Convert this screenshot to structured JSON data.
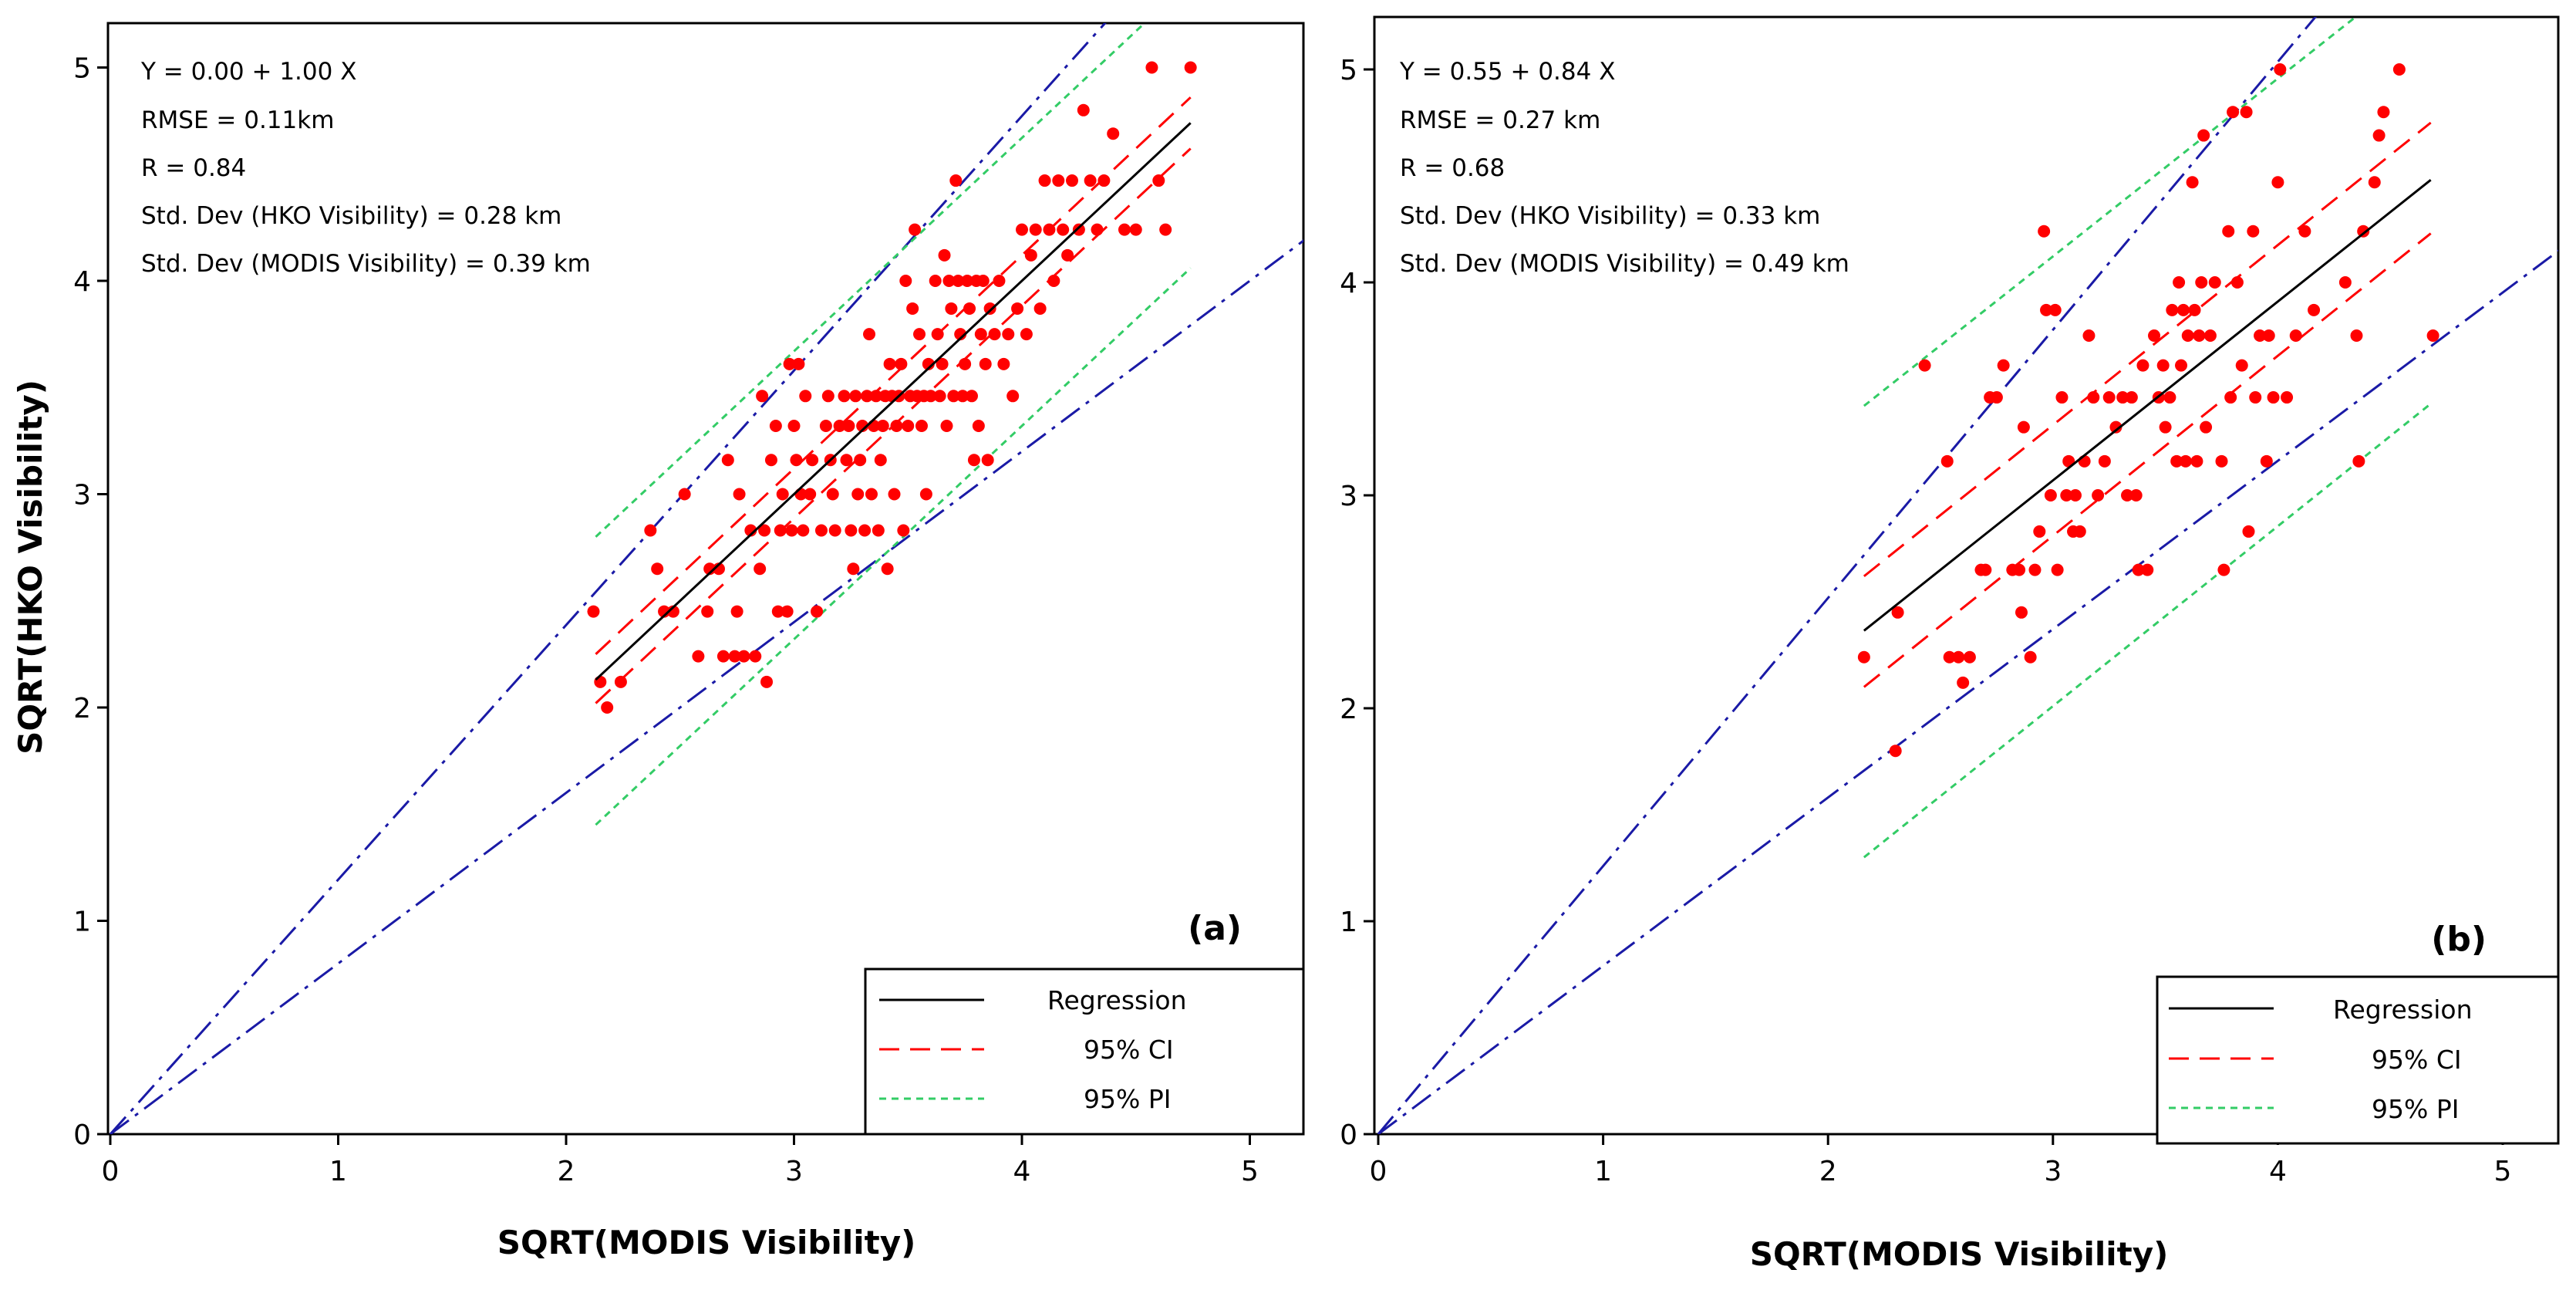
{
  "colors": {
    "points": "#ff0000",
    "regression": "#000000",
    "ci": "#ff0000",
    "pi": "#33cc66",
    "bounds": "#1a1aa6"
  },
  "chart_data": [
    {
      "type": "scatter",
      "panel_label": "(a)",
      "xlabel": "SQRT(MODIS Visibility)",
      "ylabel": "SQRT(HKO Visibility)",
      "xlim": [
        0,
        5.25
      ],
      "ylim": [
        0,
        5.25
      ],
      "xticks": [
        "0",
        "1",
        "2",
        "3",
        "4",
        "5"
      ],
      "yticks": [
        "0",
        "1",
        "2",
        "3",
        "4",
        "5"
      ],
      "annotations": [
        "Y = 0.00 + 1.00 X",
        "RMSE = 0.11km",
        "R = 0.84",
        "Std. Dev (HKO Visibility)  = 0.28 km",
        "Std. Dev (MODIS Visibility) = 0.39 km"
      ],
      "legend": {
        "location": "bottom-right",
        "entries": [
          "Regression",
          "95% CI",
          "95% PI"
        ]
      },
      "regression": {
        "intercept": 0.0,
        "slope": 1.0,
        "x_range": [
          2.13,
          4.74
        ]
      },
      "ci_upper": [
        [
          2.13,
          2.25
        ],
        [
          4.74,
          4.86
        ]
      ],
      "ci_lower": [
        [
          2.13,
          2.02
        ],
        [
          4.74,
          4.62
        ]
      ],
      "pi_upper": [
        [
          2.13,
          2.8
        ],
        [
          4.6,
          5.27
        ]
      ],
      "pi_lower": [
        [
          2.13,
          1.45
        ],
        [
          4.74,
          4.06
        ]
      ],
      "bound_upper": [
        [
          0,
          0
        ],
        [
          4.4,
          5.25
        ]
      ],
      "bound_lower": [
        [
          0,
          0
        ],
        [
          5.25,
          4.2
        ]
      ],
      "points": [
        [
          2.12,
          2.45
        ],
        [
          2.15,
          2.12
        ],
        [
          2.18,
          2.0
        ],
        [
          2.24,
          2.12
        ],
        [
          2.37,
          2.83
        ],
        [
          2.4,
          2.65
        ],
        [
          2.43,
          2.45
        ],
        [
          2.47,
          2.45
        ],
        [
          2.52,
          3.0
        ],
        [
          2.58,
          2.24
        ],
        [
          2.62,
          2.45
        ],
        [
          2.63,
          2.65
        ],
        [
          2.67,
          2.65
        ],
        [
          2.69,
          2.24
        ],
        [
          2.71,
          3.16
        ],
        [
          2.74,
          2.24
        ],
        [
          2.75,
          2.45
        ],
        [
          2.76,
          3.0
        ],
        [
          2.78,
          2.24
        ],
        [
          2.81,
          2.83
        ],
        [
          2.83,
          2.24
        ],
        [
          2.85,
          2.65
        ],
        [
          2.86,
          3.46
        ],
        [
          2.87,
          2.83
        ],
        [
          2.88,
          2.12
        ],
        [
          2.9,
          3.16
        ],
        [
          2.92,
          3.32
        ],
        [
          2.93,
          2.45
        ],
        [
          2.94,
          2.83
        ],
        [
          2.95,
          3.0
        ],
        [
          2.97,
          2.45
        ],
        [
          2.98,
          3.61
        ],
        [
          2.99,
          2.83
        ],
        [
          3.0,
          3.32
        ],
        [
          3.01,
          3.16
        ],
        [
          3.02,
          3.61
        ],
        [
          3.03,
          3.0
        ],
        [
          3.04,
          2.83
        ],
        [
          3.05,
          3.46
        ],
        [
          3.07,
          3.0
        ],
        [
          3.08,
          3.16
        ],
        [
          3.1,
          2.45
        ],
        [
          3.12,
          2.83
        ],
        [
          3.14,
          3.32
        ],
        [
          3.15,
          3.46
        ],
        [
          3.16,
          3.16
        ],
        [
          3.17,
          3.0
        ],
        [
          3.18,
          2.83
        ],
        [
          3.2,
          3.32
        ],
        [
          3.22,
          3.46
        ],
        [
          3.23,
          3.16
        ],
        [
          3.24,
          3.32
        ],
        [
          3.25,
          2.83
        ],
        [
          3.26,
          2.65
        ],
        [
          3.27,
          3.46
        ],
        [
          3.28,
          3.0
        ],
        [
          3.29,
          3.16
        ],
        [
          3.3,
          3.32
        ],
        [
          3.31,
          2.83
        ],
        [
          3.32,
          3.46
        ],
        [
          3.33,
          3.75
        ],
        [
          3.34,
          3.0
        ],
        [
          3.35,
          3.32
        ],
        [
          3.36,
          3.46
        ],
        [
          3.37,
          2.83
        ],
        [
          3.38,
          3.16
        ],
        [
          3.39,
          3.32
        ],
        [
          3.4,
          3.46
        ],
        [
          3.41,
          2.65
        ],
        [
          3.42,
          3.61
        ],
        [
          3.43,
          3.46
        ],
        [
          3.44,
          3.0
        ],
        [
          3.45,
          3.32
        ],
        [
          3.46,
          3.46
        ],
        [
          3.47,
          3.61
        ],
        [
          3.48,
          2.83
        ],
        [
          3.49,
          4.0
        ],
        [
          3.5,
          3.32
        ],
        [
          3.51,
          3.46
        ],
        [
          3.52,
          3.87
        ],
        [
          3.53,
          4.24
        ],
        [
          3.54,
          3.46
        ],
        [
          3.55,
          3.75
        ],
        [
          3.56,
          3.32
        ],
        [
          3.57,
          3.46
        ],
        [
          3.58,
          3.0
        ],
        [
          3.59,
          3.61
        ],
        [
          3.6,
          3.46
        ],
        [
          3.62,
          4.0
        ],
        [
          3.63,
          3.75
        ],
        [
          3.64,
          3.46
        ],
        [
          3.65,
          3.61
        ],
        [
          3.66,
          4.12
        ],
        [
          3.67,
          3.32
        ],
        [
          3.68,
          4.0
        ],
        [
          3.69,
          3.87
        ],
        [
          3.7,
          3.46
        ],
        [
          3.71,
          4.47
        ],
        [
          3.72,
          4.0
        ],
        [
          3.73,
          3.75
        ],
        [
          3.74,
          3.46
        ],
        [
          3.75,
          3.61
        ],
        [
          3.76,
          4.0
        ],
        [
          3.77,
          3.87
        ],
        [
          3.78,
          3.46
        ],
        [
          3.79,
          3.16
        ],
        [
          3.8,
          4.0
        ],
        [
          3.81,
          3.32
        ],
        [
          3.82,
          3.75
        ],
        [
          3.83,
          4.0
        ],
        [
          3.84,
          3.61
        ],
        [
          3.85,
          3.16
        ],
        [
          3.86,
          3.87
        ],
        [
          3.88,
          3.75
        ],
        [
          3.9,
          4.0
        ],
        [
          3.92,
          3.61
        ],
        [
          3.94,
          3.75
        ],
        [
          3.96,
          3.46
        ],
        [
          3.98,
          3.87
        ],
        [
          4.0,
          4.24
        ],
        [
          4.02,
          3.75
        ],
        [
          4.04,
          4.12
        ],
        [
          4.06,
          4.24
        ],
        [
          4.08,
          3.87
        ],
        [
          4.1,
          4.47
        ],
        [
          4.12,
          4.24
        ],
        [
          4.14,
          4.0
        ],
        [
          4.16,
          4.47
        ],
        [
          4.18,
          4.24
        ],
        [
          4.2,
          4.12
        ],
        [
          4.22,
          4.47
        ],
        [
          4.25,
          4.24
        ],
        [
          4.27,
          4.8
        ],
        [
          4.3,
          4.47
        ],
        [
          4.33,
          4.24
        ],
        [
          4.36,
          4.47
        ],
        [
          4.4,
          4.69
        ],
        [
          4.45,
          4.24
        ],
        [
          4.5,
          4.24
        ],
        [
          4.57,
          5.0
        ],
        [
          4.6,
          4.47
        ],
        [
          4.63,
          4.24
        ],
        [
          4.74,
          5.0
        ]
      ]
    },
    {
      "type": "scatter",
      "panel_label": "(b)",
      "xlabel": "SQRT(MODIS Visibility)",
      "ylabel": "",
      "xlim": [
        0,
        5.25
      ],
      "ylim": [
        0,
        5.25
      ],
      "xticks": [
        "0",
        "1",
        "2",
        "3",
        "4",
        "5"
      ],
      "yticks": [
        "0",
        "1",
        "2",
        "3",
        "4",
        "5"
      ],
      "annotations": [
        "Y = 0.55 + 0.84 X",
        "RMSE = 0.27 km",
        "R = 0.68",
        "Std. Dev (HKO Visibility)  = 0.33 km",
        "Std. Dev (MODIS Visibility) = 0.49 km"
      ],
      "legend": {
        "location": "bottom-right",
        "entries": [
          "Regression",
          "95% CI",
          "95% PI"
        ]
      },
      "regression": {
        "intercept": 0.55,
        "slope": 0.84,
        "x_range": [
          2.16,
          4.68
        ]
      },
      "ci_upper": [
        [
          2.16,
          2.62
        ],
        [
          4.68,
          4.75
        ]
      ],
      "ci_lower": [
        [
          2.16,
          2.1
        ],
        [
          4.68,
          4.23
        ]
      ],
      "pi_upper": [
        [
          2.16,
          3.42
        ],
        [
          4.35,
          5.25
        ]
      ],
      "pi_lower": [
        [
          2.16,
          1.3
        ],
        [
          4.68,
          3.43
        ]
      ],
      "bound_upper": [
        [
          0,
          0
        ],
        [
          4.17,
          5.25
        ]
      ],
      "bound_lower": [
        [
          0,
          0
        ],
        [
          5.25,
          4.15
        ]
      ],
      "points": [
        [
          2.16,
          2.24
        ],
        [
          2.3,
          1.8
        ],
        [
          2.31,
          2.45
        ],
        [
          2.43,
          3.61
        ],
        [
          2.53,
          3.16
        ],
        [
          2.54,
          2.24
        ],
        [
          2.58,
          2.24
        ],
        [
          2.6,
          2.12
        ],
        [
          2.63,
          2.24
        ],
        [
          2.68,
          2.65
        ],
        [
          2.7,
          2.65
        ],
        [
          2.72,
          3.46
        ],
        [
          2.75,
          3.46
        ],
        [
          2.78,
          3.61
        ],
        [
          2.82,
          2.65
        ],
        [
          2.85,
          2.65
        ],
        [
          2.86,
          2.45
        ],
        [
          2.87,
          3.32
        ],
        [
          2.9,
          2.24
        ],
        [
          2.92,
          2.65
        ],
        [
          2.94,
          2.83
        ],
        [
          2.96,
          4.24
        ],
        [
          2.97,
          3.87
        ],
        [
          2.99,
          3.0
        ],
        [
          3.01,
          3.87
        ],
        [
          3.02,
          2.65
        ],
        [
          3.04,
          3.46
        ],
        [
          3.06,
          3.0
        ],
        [
          3.07,
          3.16
        ],
        [
          3.09,
          2.83
        ],
        [
          3.1,
          3.0
        ],
        [
          3.12,
          2.83
        ],
        [
          3.14,
          3.16
        ],
        [
          3.16,
          3.75
        ],
        [
          3.18,
          3.46
        ],
        [
          3.2,
          3.0
        ],
        [
          3.23,
          3.16
        ],
        [
          3.25,
          3.46
        ],
        [
          3.28,
          3.32
        ],
        [
          3.31,
          3.46
        ],
        [
          3.33,
          3.0
        ],
        [
          3.35,
          3.46
        ],
        [
          3.37,
          3.0
        ],
        [
          3.38,
          2.65
        ],
        [
          3.4,
          3.61
        ],
        [
          3.42,
          2.65
        ],
        [
          3.45,
          3.75
        ],
        [
          3.47,
          3.46
        ],
        [
          3.49,
          3.61
        ],
        [
          3.5,
          3.32
        ],
        [
          3.52,
          3.46
        ],
        [
          3.53,
          3.87
        ],
        [
          3.55,
          3.16
        ],
        [
          3.56,
          4.0
        ],
        [
          3.57,
          3.61
        ],
        [
          3.58,
          3.87
        ],
        [
          3.59,
          3.16
        ],
        [
          3.6,
          3.75
        ],
        [
          3.62,
          4.47
        ],
        [
          3.63,
          3.87
        ],
        [
          3.64,
          3.16
        ],
        [
          3.65,
          3.75
        ],
        [
          3.66,
          4.0
        ],
        [
          3.67,
          4.69
        ],
        [
          3.68,
          3.32
        ],
        [
          3.7,
          3.75
        ],
        [
          3.72,
          4.0
        ],
        [
          3.75,
          3.16
        ],
        [
          3.76,
          2.65
        ],
        [
          3.78,
          4.24
        ],
        [
          3.79,
          3.46
        ],
        [
          3.8,
          4.8
        ],
        [
          3.82,
          4.0
        ],
        [
          3.84,
          3.61
        ],
        [
          3.86,
          4.8
        ],
        [
          3.87,
          2.83
        ],
        [
          3.89,
          4.24
        ],
        [
          3.9,
          3.46
        ],
        [
          3.92,
          3.75
        ],
        [
          3.95,
          3.16
        ],
        [
          3.96,
          3.75
        ],
        [
          3.98,
          3.46
        ],
        [
          4.0,
          4.47
        ],
        [
          4.01,
          5.0
        ],
        [
          4.04,
          3.46
        ],
        [
          4.08,
          3.75
        ],
        [
          4.12,
          4.24
        ],
        [
          4.16,
          3.87
        ],
        [
          4.3,
          4.0
        ],
        [
          4.35,
          3.75
        ],
        [
          4.36,
          3.16
        ],
        [
          4.38,
          4.24
        ],
        [
          4.43,
          4.47
        ],
        [
          4.45,
          4.69
        ],
        [
          4.47,
          4.8
        ],
        [
          4.54,
          5.0
        ],
        [
          4.69,
          3.75
        ]
      ]
    }
  ]
}
